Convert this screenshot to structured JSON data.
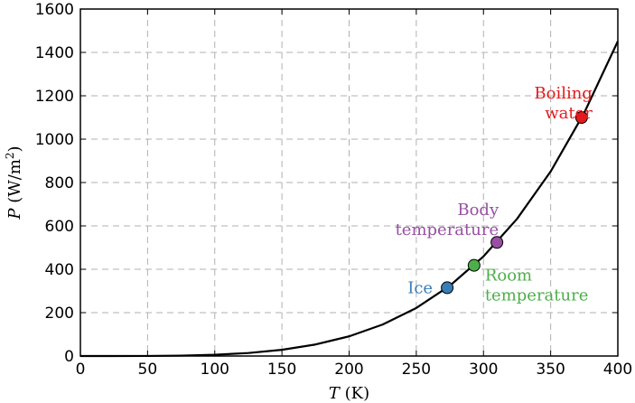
{
  "chart_data": {
    "type": "line",
    "title": "",
    "xlabel": {
      "var": "T",
      "unit": " (K)"
    },
    "ylabel": {
      "var": "P",
      "unit_open": " (W/m",
      "unit_sup": "2",
      "unit_close": ")"
    },
    "xlim": [
      0,
      400
    ],
    "ylim": [
      0,
      1600
    ],
    "xticks": [
      0,
      50,
      100,
      150,
      200,
      250,
      300,
      350,
      400
    ],
    "yticks": [
      0,
      200,
      400,
      600,
      800,
      1000,
      1200,
      1400,
      1600
    ],
    "grid": true,
    "series": [
      {
        "color": "#000000",
        "x": [
          0,
          25,
          50,
          75,
          100,
          125,
          150,
          175,
          200,
          225,
          250,
          275,
          300,
          325,
          350,
          375,
          400
        ],
        "y": [
          0,
          0.02,
          0.35,
          1.8,
          5.7,
          13.8,
          28.7,
          53.2,
          90.7,
          145.3,
          221.5,
          324.3,
          459.3,
          632.6,
          850.9,
          1121.3,
          1451.5
        ]
      }
    ],
    "annotations": [
      {
        "id": "ice",
        "lines": [
          "Ice"
        ],
        "x": 273,
        "y": 315,
        "color": "#377eb8",
        "text_color": "#377eb8",
        "anchor": "end"
      },
      {
        "id": "room",
        "lines": [
          "Room",
          "temperature"
        ],
        "x": 293,
        "y": 418,
        "color": "#4daf4a",
        "text_color": "#4daf4a",
        "anchor": "start"
      },
      {
        "id": "body",
        "lines": [
          "Body",
          "temperature"
        ],
        "x": 310,
        "y": 524,
        "color": "#984ea3",
        "text_color": "#984ea3",
        "anchor": "end"
      },
      {
        "id": "boiling",
        "lines": [
          "Boiling",
          "water"
        ],
        "x": 373,
        "y": 1100,
        "color": "#e41a1c",
        "text_color": "#e41a1c",
        "anchor": "end"
      }
    ]
  }
}
